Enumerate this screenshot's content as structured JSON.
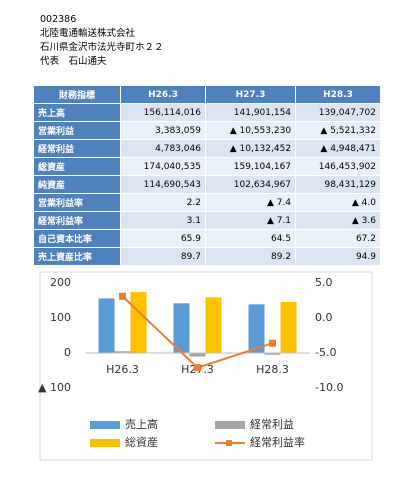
{
  "header": {
    "code": "002386",
    "company": "北陸電通輸送株式会社",
    "address": "石川県金沢市法光寺町ホ２２",
    "representative": "代表　石山通夫"
  },
  "table": {
    "header": [
      "財務指標",
      "H26.3",
      "H27.3",
      "H28.3"
    ],
    "rows": [
      [
        "売上高",
        "156,114,016",
        "141,901,154",
        "139,047,702"
      ],
      [
        "営業利益",
        "3,383,059",
        "▲ 10,553,230",
        "▲ 5,521,332"
      ],
      [
        "経常利益",
        "4,783,046",
        "▲ 10,132,452",
        "▲ 4,948,471"
      ],
      [
        "総資産",
        "174,040,535",
        "159,104,167",
        "146,453,902"
      ],
      [
        "純資産",
        "114,690,543",
        "102,634,967",
        "98,431,129"
      ],
      [
        "営業利益率",
        "2.2",
        "▲ 7.4",
        "▲ 4.0"
      ],
      [
        "経常利益率",
        "3.1",
        "▲ 7.1",
        "▲ 3.6"
      ],
      [
        "自己資本比率",
        "65.9",
        "64.5",
        "67.2"
      ],
      [
        "売上資産比率",
        "89.7",
        "89.2",
        "94.9"
      ]
    ]
  },
  "chart_data": {
    "type": "bar",
    "categories": [
      "H26.3",
      "H27.3",
      "H28.3"
    ],
    "series": [
      {
        "name": "売上高",
        "color": "#5b9bd5",
        "values": [
          156,
          142,
          139
        ]
      },
      {
        "name": "経常利益",
        "color": "#a5a5a5",
        "values": [
          5,
          -10,
          -5
        ]
      },
      {
        "name": "総資産",
        "color": "#ffc000",
        "values": [
          174,
          159,
          146
        ]
      },
      {
        "name": "経常利益率",
        "color": "#ed7d31",
        "type": "line",
        "axis": "y2",
        "values": [
          3.1,
          -7.1,
          -3.6
        ]
      }
    ],
    "ylim": [
      -100,
      200
    ],
    "yticks": [
      {
        "value": -100,
        "label": "▲ 100"
      },
      0,
      100,
      200
    ],
    "y2lim": [
      -10,
      5
    ],
    "y2ticks": [
      {
        "value": -10,
        "label": "-10.0"
      },
      {
        "value": -5,
        "label": "-5.0"
      },
      {
        "value": 0,
        "label": "0.0"
      },
      {
        "value": 5,
        "label": "5.0"
      }
    ]
  }
}
